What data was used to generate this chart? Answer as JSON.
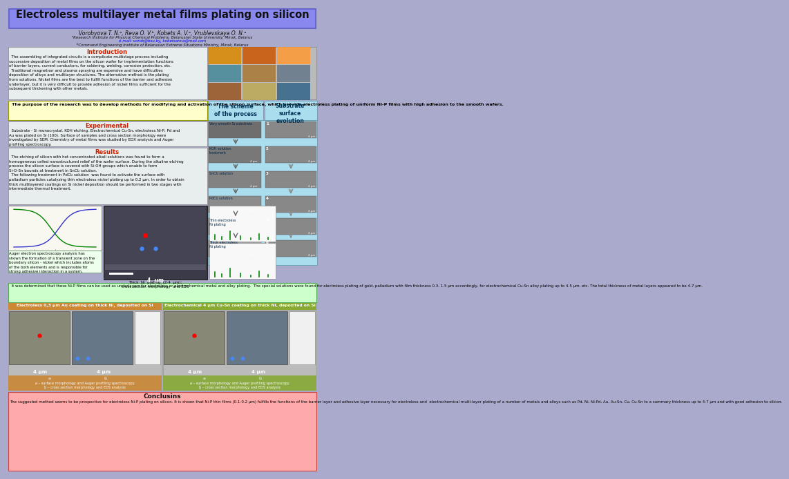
{
  "title": "Electroless multilayer metal films plating on silicon",
  "title_bg": "#8888ee",
  "title_color": "#111111",
  "poster_bg": "#aaaacc",
  "authors": "Vorobyova T. N.ᵃ, Reva O. V.ᵇ, Kobets A. V.ᵃ, Vrublevskaya O. N.ᵃ",
  "affil1": "ᵃResearch Institute for Physical Chemical Problems, Belarusian State University, Minsk, Belarus",
  "email_line": "e-mail: vorob@bsu.by, kobetsanna@mail.com",
  "affil2": "ᵇCommand Engineering Institute of Belarusian Extreme Situations Ministry, Minsk, Belarus",
  "intro_title": "Introduction",
  "purpose_bg": "#ffffcc",
  "purpose_text": "  The purpose of the research was to develop methods for modifying and activation of the silicon surface, which provide electroless plating of uniform Ni-P films with high adhesion to the smooth wafers.",
  "exp_title": "Experimental",
  "results_title": "Results",
  "auger_caption": "Auger electron spectroscopy analysis has\nshown the formation of a transient zone on the\nboundary silicon - nickel which includes atoms\nof the both elements and is responsible for\nstrong adhesive interaction in a system.",
  "thick_ni_caption": "Thick  Ni  plating  (2-4  μm):\ncross section morphology  and EDS",
  "middle_bg": "#ccffcc",
  "middle_text": "  It was determined that these Ni-P films can be used as underlayers for electroless or electrochemical metal and alloy plating.  The special solutions were found for electroless plating of gold, palladium with film thickness 0.3, 1.5 μm accordingly, for electrochemical Cu-Sn alloy plating up to 4-5 μm, etc. The total thickness of metal layers appeared to be 4-7 μm.",
  "section1_title": "Electroless 0,3 μm Au coating on thick Ni, deposited on Si",
  "section2_title": "Electrochemical 4 μm Cu-Sn coating on thick Ni, deposited on Si",
  "section1_bg": "#cc8833",
  "section2_bg": "#88aa33",
  "caption_left1": "a",
  "caption_left2": "b",
  "caption_text_left": "a – surface morphology and Auger profiling spectroscopy\nb – cross section morphology and EDS analysis",
  "caption_text_right": "a – surface morphology and Auger profiling spectroscopy\nb – cross section morphology and EDS analysis",
  "conclusions_title": "Conclusins",
  "conclusions_text": "The suggested method seems to be prospective for electroless Ni-P plating on silicon. It is shown that Ni-P thin films (0.1-0.2 μm) fulfills the functions of the barrier layer and adhesive layer necessary for electroless and  electrochemical multi-layer plating of a number of metals and alloys such as Pd, Ni, Ni-Pd, Au, Au-Sn, Cu, Cu-Sn to a summary thickness up to 4-7 μm and with good adhesion to silicon.",
  "conclusions_bg": "#ffaaaa",
  "scheme_title": "The scheme\nof the process",
  "substrate_title": "Substrate\nsurface\nevolution",
  "scheme_bg": "#aaddee",
  "content_bg": "#ddeedd",
  "text_section_bg": "#e8eeee"
}
